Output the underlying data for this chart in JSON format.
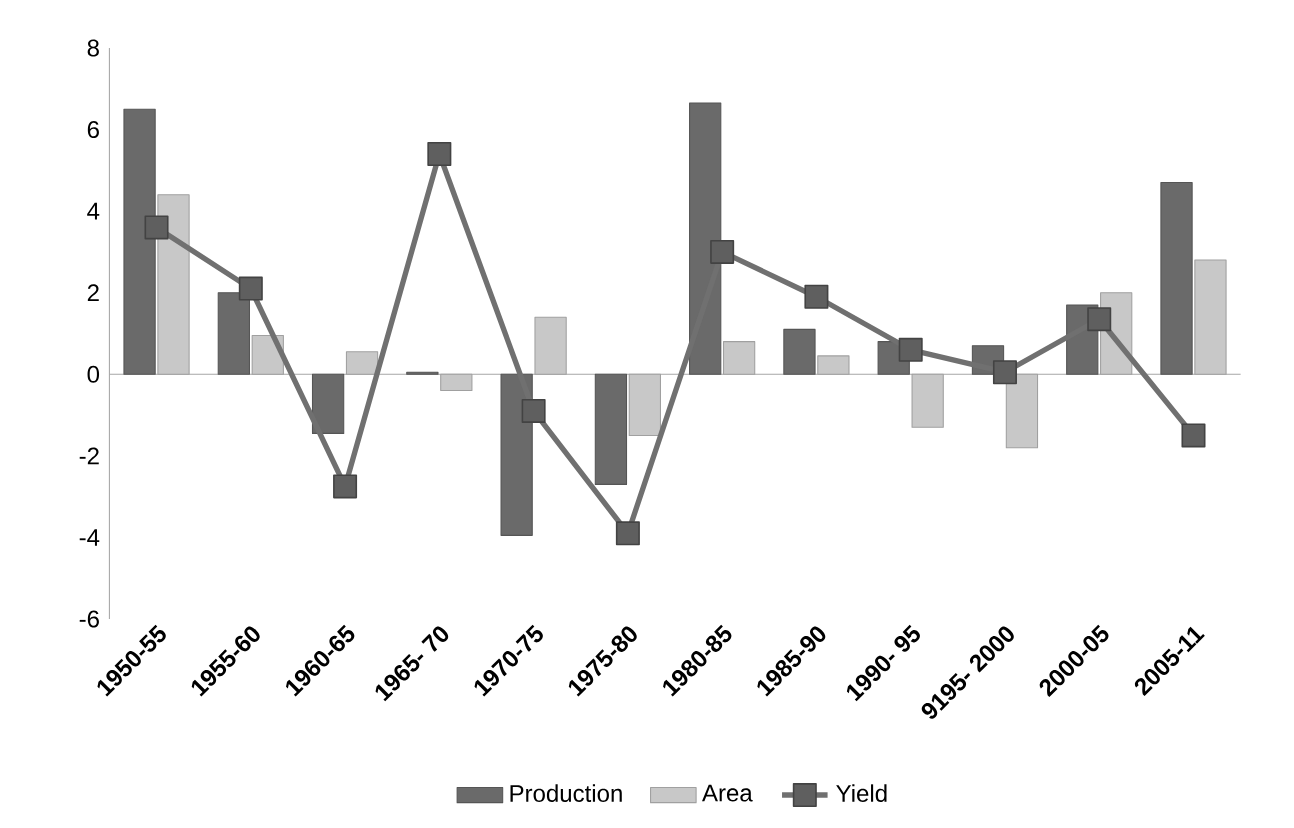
{
  "chart_data": {
    "type": "bar",
    "categories": [
      "1950-55",
      "1955-60",
      "1960-65",
      "1965- 70",
      "1970-75",
      "1975-80",
      "1980-85",
      "1985-90",
      "1990- 95",
      "9195- 2000",
      "2000-05",
      "2005-11"
    ],
    "series": [
      {
        "name": "Production",
        "color": "#6a6a6a",
        "values": [
          6.5,
          2.0,
          -1.45,
          0.05,
          -3.95,
          -2.7,
          6.65,
          1.1,
          0.8,
          0.7,
          1.7,
          4.7
        ]
      },
      {
        "name": "Area",
        "color": "#c8c8c8",
        "values": [
          4.4,
          0.95,
          0.55,
          -0.4,
          1.4,
          -1.5,
          0.8,
          0.45,
          -1.3,
          -1.8,
          2.0,
          2.8
        ]
      },
      {
        "name": "Yield",
        "type": "line",
        "color": "#707070",
        "marker": "square",
        "values": [
          3.6,
          2.1,
          -2.75,
          5.4,
          -0.9,
          -3.9,
          3.0,
          1.9,
          0.6,
          0.05,
          1.35,
          -1.5
        ]
      }
    ],
    "ylim": [
      -6,
      8
    ],
    "yticks": [
      -6,
      -4,
      -2,
      0,
      2,
      4,
      6,
      8
    ],
    "legend": "bottom"
  }
}
